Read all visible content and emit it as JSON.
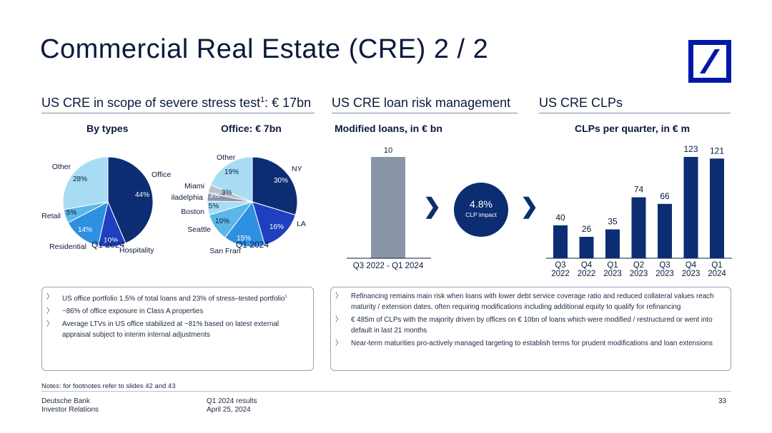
{
  "slide": {
    "title": "Commercial Real Estate (CRE) 2 / 2",
    "page_number": "33"
  },
  "colors": {
    "navy": "#0c2d72",
    "blue_mid": "#1f3fc0",
    "blue": "#0b5ed7",
    "blue_light": "#2f8fe0",
    "cyan": "#5bb7e8",
    "sky": "#a8dcf4",
    "gray": "#8c96a8",
    "gray_light": "#b9c0cb",
    "bar_gray": "#8a96a8"
  },
  "sections": {
    "stress": {
      "title_pre": "US CRE in scope of severe stress test",
      "title_sup": "1",
      "title_post": ": € 17bn"
    },
    "risk": {
      "title": "US CRE loan risk management"
    },
    "clps": {
      "title": "US CRE CLPs"
    }
  },
  "circle": {
    "value": "4.8%",
    "label": "CLP impact"
  },
  "chart_data": [
    {
      "type": "pie",
      "title": "By types",
      "xlabel": "Q1 2024",
      "categories": [
        "Office",
        "Hospitality",
        "Residential",
        "Retail",
        "Other"
      ],
      "values": [
        44,
        10,
        14,
        5,
        28
      ],
      "value_labels": [
        "44%",
        "10%",
        "14%",
        "5%",
        "28%"
      ],
      "colors": [
        "#0c2d72",
        "#1f3fc0",
        "#2f8fe0",
        "#5bb7e8",
        "#a8dcf4"
      ]
    },
    {
      "type": "pie",
      "title": "Office: € 7bn",
      "xlabel": "Q1 2024",
      "categories": [
        "NY",
        "LA",
        "San Fran",
        "Seattle",
        "Boston",
        "Philadelphia",
        "Miami",
        "Other"
      ],
      "values": [
        30,
        16,
        15,
        10,
        5,
        3,
        3,
        19
      ],
      "value_labels": [
        "30%",
        "16%",
        "15%",
        "10%",
        "5%",
        "3%",
        "3%",
        "19%"
      ],
      "colors": [
        "#0c2d72",
        "#1f3fc0",
        "#2f8fe0",
        "#5bb7e8",
        "#a8dcf4",
        "#8c96a8",
        "#b9c0cb",
        "#a8dcf4"
      ]
    },
    {
      "type": "bar",
      "title": "Modified loans, in € bn",
      "categories": [
        "Q3 2022 - Q1 2024"
      ],
      "values": [
        10
      ],
      "value_labels": [
        "10"
      ],
      "ylim": [
        0,
        10
      ]
    },
    {
      "type": "bar",
      "title": "CLPs per quarter, in € m",
      "categories": [
        "Q3 2022",
        "Q4 2022",
        "Q1 2023",
        "Q2 2023",
        "Q3 2023",
        "Q4 2023",
        "Q1 2024"
      ],
      "category_lines": [
        [
          "Q3",
          "2022"
        ],
        [
          "Q4",
          "2022"
        ],
        [
          "Q1",
          "2023"
        ],
        [
          "Q2",
          "2023"
        ],
        [
          "Q3",
          "2023"
        ],
        [
          "Q4",
          "2023"
        ],
        [
          "Q1",
          "2024"
        ]
      ],
      "values": [
        40,
        26,
        35,
        74,
        66,
        123,
        121
      ],
      "ylim": [
        0,
        123
      ]
    }
  ],
  "box_left": {
    "bullets": [
      {
        "text": "US office portfolio 1.5% of total loans and 23% of stress–tested portfolio",
        "sup": "1"
      },
      {
        "text": "~86% of office exposure in Class A properties",
        "sup": ""
      },
      {
        "text": "Average LTVs in US office stabilized at ~81% based on latest external appraisal subject to interim internal adjustments",
        "sup": ""
      }
    ]
  },
  "box_right": {
    "bullets": [
      {
        "text": "Refinancing remains main risk when loans with lower debt service coverage ratio and reduced collateral values reach maturity / extension dates, often requiring modifications including additional equity to qualify for refinancing",
        "sup": ""
      },
      {
        "text": "€ 485m of CLPs with the majority driven by offices on € 10bn of loans which were modified / restructured or went into default in last 21 months",
        "sup": ""
      },
      {
        "text": "Near-term maturities pro-actively managed targeting to establish terms for prudent modifications and loan extensions",
        "sup": ""
      }
    ]
  },
  "notes": "Notes: for footnotes refer to slides 42 and 43",
  "footer": {
    "company": "Deutsche Bank",
    "dept": "Investor Relations",
    "report": "Q1 2024 results",
    "date": "April 25, 2024"
  },
  "bullet_marker": "〉",
  "chevron": "❯"
}
